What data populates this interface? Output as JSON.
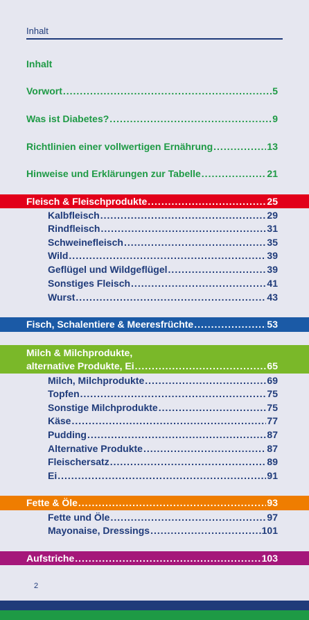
{
  "header": {
    "title": "Inhalt"
  },
  "toc_heading": "Inhalt",
  "intro_entries": [
    {
      "label": "Vorwort",
      "page": "5"
    },
    {
      "label": "Was ist Diabetes?",
      "page": "9"
    },
    {
      "label": "Richtlinien einer vollwertigen Ernährung",
      "page": "13"
    },
    {
      "label": "Hinweise und Erklärungen zur Tabelle",
      "page": "21"
    }
  ],
  "sections": [
    {
      "label": "Fleisch & Fleischprodukte",
      "page": "25",
      "color": "#e2001a",
      "items": [
        {
          "label": "Kalbfleisch",
          "page": "29"
        },
        {
          "label": "Rindfleisch",
          "page": "31"
        },
        {
          "label": "Schweinefleisch",
          "page": "35"
        },
        {
          "label": "Wild",
          "page": "39"
        },
        {
          "label": "Geflügel und Wildgeflügel",
          "page": "39"
        },
        {
          "label": "Sonstiges Fleisch",
          "page": "41"
        },
        {
          "label": "Wurst",
          "page": "43"
        }
      ]
    },
    {
      "label": "Fisch, Schalentiere & Meeresfrüchte",
      "page": "53",
      "color": "#1b5aa6",
      "items": []
    },
    {
      "label_line1": "Milch & Milchprodukte,",
      "label": "alternative Produkte, Ei",
      "page": "65",
      "color": "#7ab829",
      "items": [
        {
          "label": "Milch, Milchprodukte",
          "page": "69"
        },
        {
          "label": "Topfen",
          "page": "75"
        },
        {
          "label": "Sonstige Milchprodukte",
          "page": "75"
        },
        {
          "label": "Käse",
          "page": "77"
        },
        {
          "label": "Pudding",
          "page": "87"
        },
        {
          "label": "Alternative Produkte",
          "page": "87"
        },
        {
          "label": "Fleischersatz",
          "page": "89"
        },
        {
          "label": "Ei",
          "page": "91"
        }
      ]
    },
    {
      "label": "Fette & Öle",
      "page": "93",
      "color": "#ef7d00",
      "items": [
        {
          "label": "Fette und Öle",
          "page": "97"
        },
        {
          "label": "Mayonaise, Dressings",
          "page": "101"
        }
      ]
    },
    {
      "label": "Aufstriche",
      "page": "103",
      "color": "#a5177a",
      "items": []
    }
  ],
  "footer": {
    "page_number": "2"
  }
}
